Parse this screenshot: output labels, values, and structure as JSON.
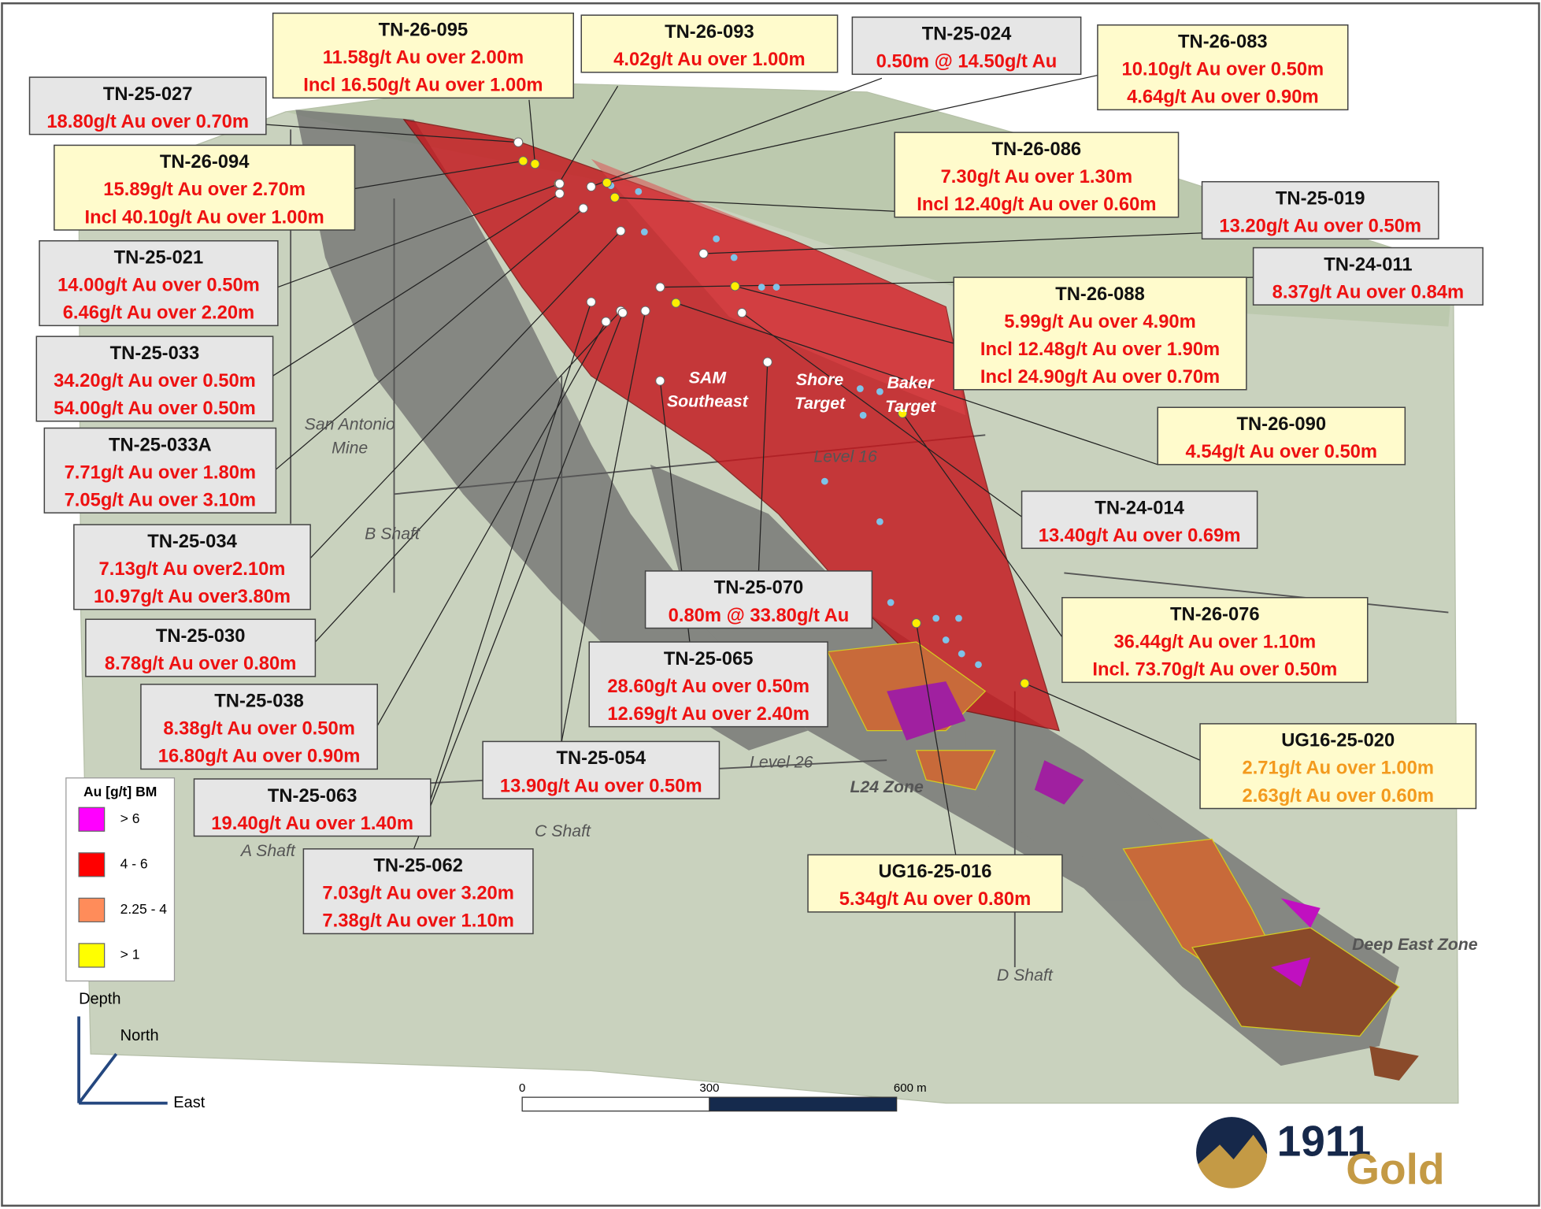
{
  "callouts": [
    {
      "title": "TN-26-095",
      "lines": [
        "11.58g/t Au over 2.00m",
        "Incl 16.50g/t Au over 1.00m"
      ],
      "fill": "#fffbcc",
      "text_color": "#ee1111"
    },
    {
      "title": "TN-26-093",
      "lines": [
        "4.02g/t Au over 1.00m"
      ],
      "fill": "#fffbcc",
      "text_color": "#ee1111"
    },
    {
      "title": "TN-25-024",
      "lines": [
        "0.50m @ 14.50g/t Au"
      ],
      "fill": "#e6e6e6",
      "text_color": "#ee1111"
    },
    {
      "title": "TN-26-083",
      "lines": [
        "10.10g/t Au over 0.50m",
        "4.64g/t Au over 0.90m"
      ],
      "fill": "#fffbcc",
      "text_color": "#ee1111"
    },
    {
      "title": "TN-25-027",
      "lines": [
        "18.80g/t Au over 0.70m"
      ],
      "fill": "#e6e6e6",
      "text_color": "#ee1111"
    },
    {
      "title": "TN-26-094",
      "lines": [
        "15.89g/t Au over 2.70m",
        "Incl 40.10g/t Au over 1.00m"
      ],
      "fill": "#fffbcc",
      "text_color": "#ee1111"
    },
    {
      "title": "TN-26-086",
      "lines": [
        "7.30g/t Au over 1.30m",
        "Incl 12.40g/t Au over 0.60m"
      ],
      "fill": "#fffbcc",
      "text_color": "#ee1111"
    },
    {
      "title": "TN-25-019",
      "lines": [
        "13.20g/t Au over 0.50m"
      ],
      "fill": "#e6e6e6",
      "text_color": "#ee1111"
    },
    {
      "title": "TN-24-011",
      "lines": [
        "8.37g/t Au over 0.84m"
      ],
      "fill": "#e6e6e6",
      "text_color": "#ee1111"
    },
    {
      "title": "TN-25-021",
      "lines": [
        "14.00g/t Au over 0.50m",
        "6.46g/t Au over 2.20m"
      ],
      "fill": "#e6e6e6",
      "text_color": "#ee1111"
    },
    {
      "title": "TN-26-088",
      "lines": [
        "5.99g/t Au over 4.90m",
        "Incl 12.48g/t Au over 1.90m",
        "Incl 24.90g/t Au over 0.70m"
      ],
      "fill": "#fffbcc",
      "text_color": "#ee1111"
    },
    {
      "title": "TN-25-033",
      "lines": [
        "34.20g/t Au over 0.50m",
        "54.00g/t Au over 0.50m"
      ],
      "fill": "#e6e6e6",
      "text_color": "#ee1111"
    },
    {
      "title": "TN-25-033A",
      "lines": [
        "7.71g/t Au over 1.80m",
        "7.05g/t Au over 3.10m"
      ],
      "fill": "#e6e6e6",
      "text_color": "#ee1111"
    },
    {
      "title": "TN-26-090",
      "lines": [
        "4.54g/t Au over 0.50m"
      ],
      "fill": "#fffbcc",
      "text_color": "#ee1111"
    },
    {
      "title": "TN-24-014",
      "lines": [
        "13.40g/t Au over 0.69m"
      ],
      "fill": "#e6e6e6",
      "text_color": "#ee1111"
    },
    {
      "title": "TN-25-034",
      "lines": [
        "7.13g/t Au  over2.10m",
        "10.97g/t Au over3.80m"
      ],
      "fill": "#e6e6e6",
      "text_color": "#ee1111"
    },
    {
      "title": "TN-25-070",
      "lines": [
        "0.80m @ 33.80g/t Au"
      ],
      "fill": "#e6e6e6",
      "text_color": "#ee1111"
    },
    {
      "title": "TN-25-030",
      "lines": [
        "8.78g/t Au over 0.80m"
      ],
      "fill": "#e6e6e6",
      "text_color": "#ee1111"
    },
    {
      "title": "TN-26-076",
      "lines": [
        "36.44g/t Au over 1.10m",
        "Incl. 73.70g/t Au over 0.50m"
      ],
      "fill": "#fffbcc",
      "text_color": "#ee1111"
    },
    {
      "title": "TN-25-065",
      "lines": [
        "28.60g/t Au over 0.50m",
        "12.69g/t Au over 2.40m"
      ],
      "fill": "#e6e6e6",
      "text_color": "#ee1111"
    },
    {
      "title": "TN-25-038",
      "lines": [
        "8.38g/t Au over 0.50m",
        "16.80g/t Au over 0.90m"
      ],
      "fill": "#e6e6e6",
      "text_color": "#ee1111"
    },
    {
      "title": "UG16-25-020",
      "lines": [
        "2.71g/t Au over 1.00m",
        "2.63g/t Au over 0.60m"
      ],
      "fill": "#fffbcc",
      "text_color": "#f39a1e"
    },
    {
      "title": "TN-25-054",
      "lines": [
        "13.90g/t Au over 0.50m"
      ],
      "fill": "#e6e6e6",
      "text_color": "#ee1111"
    },
    {
      "title": "TN-25-063",
      "lines": [
        "19.40g/t Au over 1.40m"
      ],
      "fill": "#e6e6e6",
      "text_color": "#ee1111"
    },
    {
      "title": "UG16-25-016",
      "lines": [
        "5.34g/t Au over 0.80m"
      ],
      "fill": "#fffbcc",
      "text_color": "#ee1111"
    },
    {
      "title": "TN-25-062",
      "lines": [
        "7.03g/t Au over 3.20m",
        "7.38g/t Au over 1.10m"
      ],
      "fill": "#e6e6e6",
      "text_color": "#ee1111"
    }
  ],
  "places": [
    {
      "lines": [
        "San Antonio",
        "Mine"
      ],
      "style": "plain"
    },
    {
      "lines": [
        "SAM",
        "Southeast"
      ],
      "style": "white"
    },
    {
      "lines": [
        "Shore",
        "Target"
      ],
      "style": "white"
    },
    {
      "lines": [
        "Baker",
        "Target"
      ],
      "style": "white"
    },
    {
      "lines": [
        "Level 16"
      ],
      "style": "plain"
    },
    {
      "lines": [
        "B Shaft"
      ],
      "style": "plain"
    },
    {
      "lines": [
        "Level 26"
      ],
      "style": "plain"
    },
    {
      "lines": [
        "L24 Zone"
      ],
      "style": "bold"
    },
    {
      "lines": [
        "C Shaft"
      ],
      "style": "plain"
    },
    {
      "lines": [
        "A Shaft"
      ],
      "style": "plain"
    },
    {
      "lines": [
        "D Shaft"
      ],
      "style": "plain"
    },
    {
      "lines": [
        "Deep East Zone"
      ],
      "style": "bold"
    }
  ],
  "legend": {
    "title": "Au [g/t] BM",
    "items": [
      {
        "label": "> 6",
        "color": "#ff00ff"
      },
      {
        "label": "4 - 6",
        "color": "#ff0000"
      },
      {
        "label": "2.25 - 4",
        "color": "#ff8c5a"
      },
      {
        "label": "> 1",
        "color": "#ffff00"
      }
    ]
  },
  "compass": {
    "depth": "Depth",
    "north": "North",
    "east": "East"
  },
  "scale_bar": {
    "labels": [
      "0",
      "300",
      "600 m"
    ]
  },
  "logo": {
    "number": "1911",
    "word": "Gold"
  }
}
